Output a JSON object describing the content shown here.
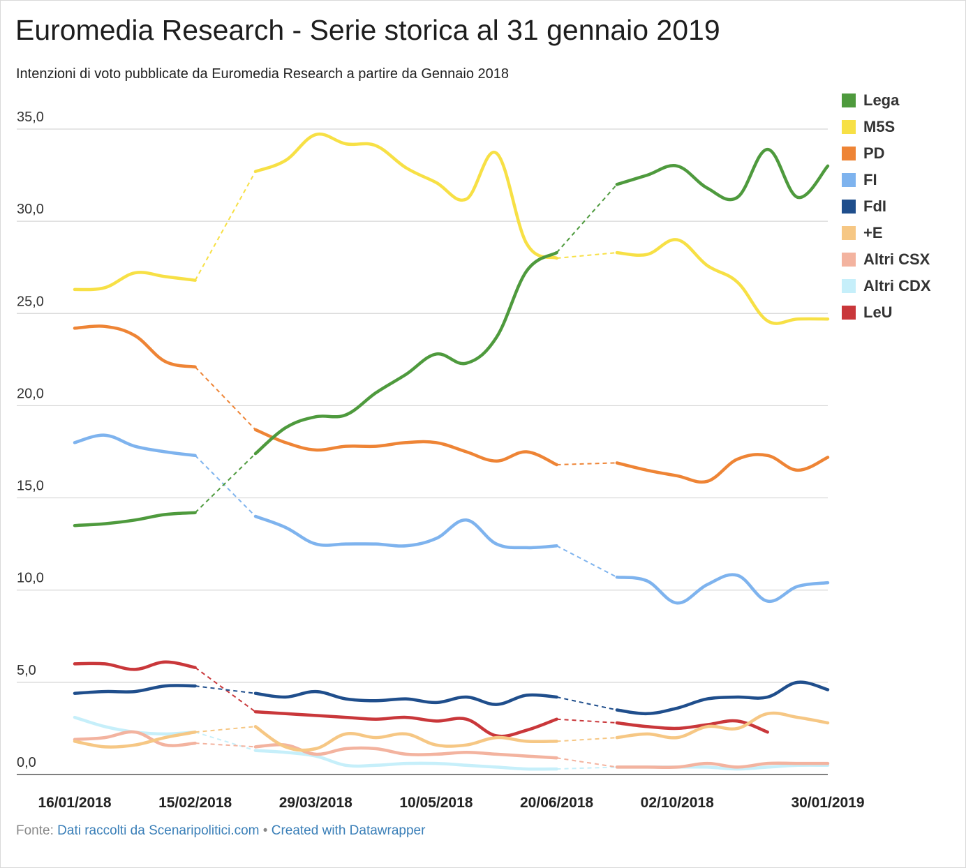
{
  "title": "Euromedia Research - Serie storica al 31 gennaio 2019",
  "subtitle": "Intenzioni di voto pubblicate da Euromedia Research a partire da Gennaio 2018",
  "footer": {
    "source_label": "Fonte:",
    "source_text": "Dati raccolti da Scenaripolitici.com",
    "separator": "•",
    "credit_text": "Created with Datawrapper"
  },
  "chart_data": {
    "type": "line",
    "title": "Euromedia Research - Serie storica al 31 gennaio 2019",
    "ylim": [
      0,
      35
    ],
    "yticks": [
      "0,0",
      "5,0",
      "10,0",
      "15,0",
      "20,0",
      "25,0",
      "30,0",
      "35,0"
    ],
    "ytick_values": [
      0,
      5,
      10,
      15,
      20,
      25,
      30,
      35
    ],
    "grid": true,
    "legend_position": "right",
    "x_count": 26,
    "xtick_labels": [
      {
        "index": 0,
        "label": "16/01/2018"
      },
      {
        "index": 4,
        "label": "15/02/2018"
      },
      {
        "index": 8,
        "label": "29/03/2018"
      },
      {
        "index": 12,
        "label": "10/05/2018"
      },
      {
        "index": 16,
        "label": "20/06/2018"
      },
      {
        "index": 20,
        "label": "02/10/2018"
      },
      {
        "index": 25,
        "label": "30/01/2019"
      }
    ],
    "gaps": [
      [
        4,
        6
      ],
      [
        16,
        18
      ]
    ],
    "series": [
      {
        "name": "Lega",
        "color": "#4e9a3d",
        "values": [
          13.5,
          13.6,
          13.8,
          14.1,
          14.2,
          null,
          17.4,
          18.8,
          19.4,
          19.5,
          20.7,
          21.7,
          22.8,
          22.3,
          23.7,
          27.3,
          28.3,
          null,
          32.0,
          32.5,
          33.0,
          31.8,
          31.3,
          33.9,
          31.3,
          33.0
        ]
      },
      {
        "name": "M5S",
        "color": "#f7e045",
        "values": [
          26.3,
          26.4,
          27.2,
          27.0,
          26.8,
          null,
          32.7,
          33.3,
          34.7,
          34.2,
          34.1,
          32.9,
          32.1,
          31.2,
          33.7,
          28.8,
          28.0,
          null,
          28.3,
          28.2,
          29.0,
          27.6,
          26.7,
          24.6,
          24.7,
          24.7
        ]
      },
      {
        "name": "PD",
        "color": "#ee8435",
        "values": [
          24.2,
          24.3,
          23.8,
          22.4,
          22.1,
          null,
          18.7,
          18.0,
          17.6,
          17.8,
          17.8,
          18.0,
          18.0,
          17.5,
          17.0,
          17.5,
          16.8,
          null,
          16.9,
          16.5,
          16.2,
          15.9,
          17.1,
          17.3,
          16.5,
          17.2
        ]
      },
      {
        "name": "FI",
        "color": "#7eb3ee",
        "values": [
          18.0,
          18.4,
          17.8,
          17.5,
          17.3,
          null,
          14.0,
          13.4,
          12.5,
          12.5,
          12.5,
          12.4,
          12.8,
          13.8,
          12.5,
          12.3,
          12.4,
          null,
          10.7,
          10.5,
          9.3,
          10.3,
          10.8,
          9.4,
          10.2,
          10.4
        ]
      },
      {
        "name": "FdI",
        "color": "#1f4e8c",
        "values": [
          4.4,
          4.5,
          4.5,
          4.8,
          4.8,
          null,
          4.4,
          4.2,
          4.5,
          4.1,
          4.0,
          4.1,
          3.9,
          4.2,
          3.8,
          4.3,
          4.2,
          null,
          3.5,
          3.3,
          3.6,
          4.1,
          4.2,
          4.2,
          5.0,
          4.6
        ]
      },
      {
        "name": "+E",
        "color": "#f6c784",
        "values": [
          1.8,
          1.5,
          1.6,
          2.0,
          2.3,
          null,
          2.6,
          1.5,
          1.4,
          2.2,
          2.0,
          2.2,
          1.6,
          1.6,
          2.0,
          1.8,
          1.8,
          null,
          2.0,
          2.2,
          2.0,
          2.6,
          2.5,
          3.3,
          3.1,
          2.8
        ]
      },
      {
        "name": "Altri CSX",
        "color": "#f3b39f",
        "values": [
          1.9,
          2.0,
          2.3,
          1.6,
          1.7,
          null,
          1.5,
          1.6,
          1.1,
          1.4,
          1.4,
          1.1,
          1.1,
          1.2,
          1.1,
          1.0,
          0.9,
          null,
          0.4,
          0.4,
          0.4,
          0.6,
          0.4,
          0.6,
          0.6,
          0.6
        ]
      },
      {
        "name": "Altri CDX",
        "color": "#c6effa",
        "values": [
          3.1,
          2.6,
          2.3,
          2.2,
          2.3,
          null,
          1.3,
          1.2,
          1.0,
          0.5,
          0.5,
          0.6,
          0.6,
          0.5,
          0.4,
          0.3,
          0.3,
          null,
          0.4,
          0.4,
          0.4,
          0.4,
          0.3,
          0.4,
          0.5,
          0.5
        ]
      },
      {
        "name": "LeU",
        "color": "#c9373a",
        "values": [
          6.0,
          6.0,
          5.7,
          6.1,
          5.8,
          null,
          3.4,
          3.3,
          3.2,
          3.1,
          3.0,
          3.1,
          2.9,
          3.0,
          2.1,
          2.4,
          3.0,
          null,
          2.8,
          2.6,
          2.5,
          2.7,
          2.9,
          2.3,
          null,
          null
        ]
      }
    ]
  }
}
